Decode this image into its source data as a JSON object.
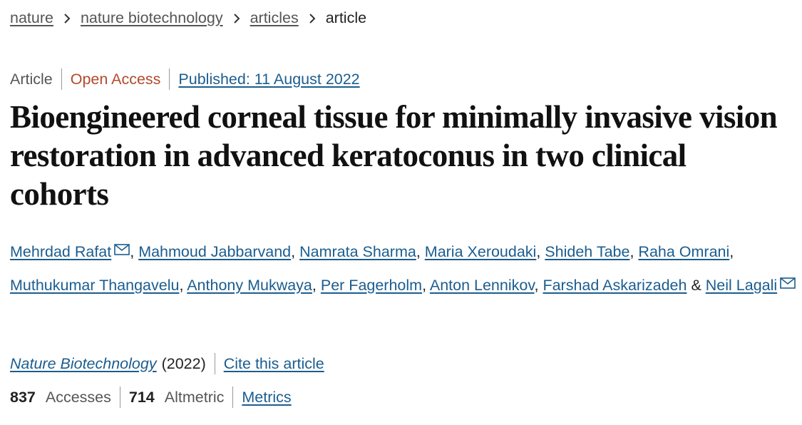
{
  "breadcrumbs": [
    "nature",
    "nature biotechnology",
    "articles",
    "article"
  ],
  "meta": {
    "type": "Article",
    "access": "Open Access",
    "published": "Published: 11 August 2022"
  },
  "title": "Bioengineered corneal tissue for minimally invasive vision restoration in advanced keratoconus in two clinical cohorts",
  "authors": [
    {
      "name": "Mehrdad Rafat",
      "corresponding": true
    },
    {
      "name": "Mahmoud Jabbarvand",
      "corresponding": false
    },
    {
      "name": "Namrata Sharma",
      "corresponding": false
    },
    {
      "name": "Maria Xeroudaki",
      "corresponding": false
    },
    {
      "name": "Shideh Tabe",
      "corresponding": false
    },
    {
      "name": "Raha Omrani",
      "corresponding": false
    },
    {
      "name": "Muthukumar Thangavelu",
      "corresponding": false
    },
    {
      "name": "Anthony Mukwaya",
      "corresponding": false
    },
    {
      "name": "Per Fagerholm",
      "corresponding": false
    },
    {
      "name": "Anton Lennikov",
      "corresponding": false
    },
    {
      "name": "Farshad Askarizadeh",
      "corresponding": false
    },
    {
      "name": "Neil Lagali",
      "corresponding": true
    }
  ],
  "authors_separator": ",",
  "authors_conjunction": "&",
  "citation": {
    "journal": "Nature Biotechnology",
    "year": "(2022)",
    "cite": "Cite this article"
  },
  "metrics": {
    "accesses": 837,
    "accesses_label": "Accesses",
    "altmetric": 714,
    "altmetric_label": "Altmetric",
    "link": "Metrics"
  }
}
